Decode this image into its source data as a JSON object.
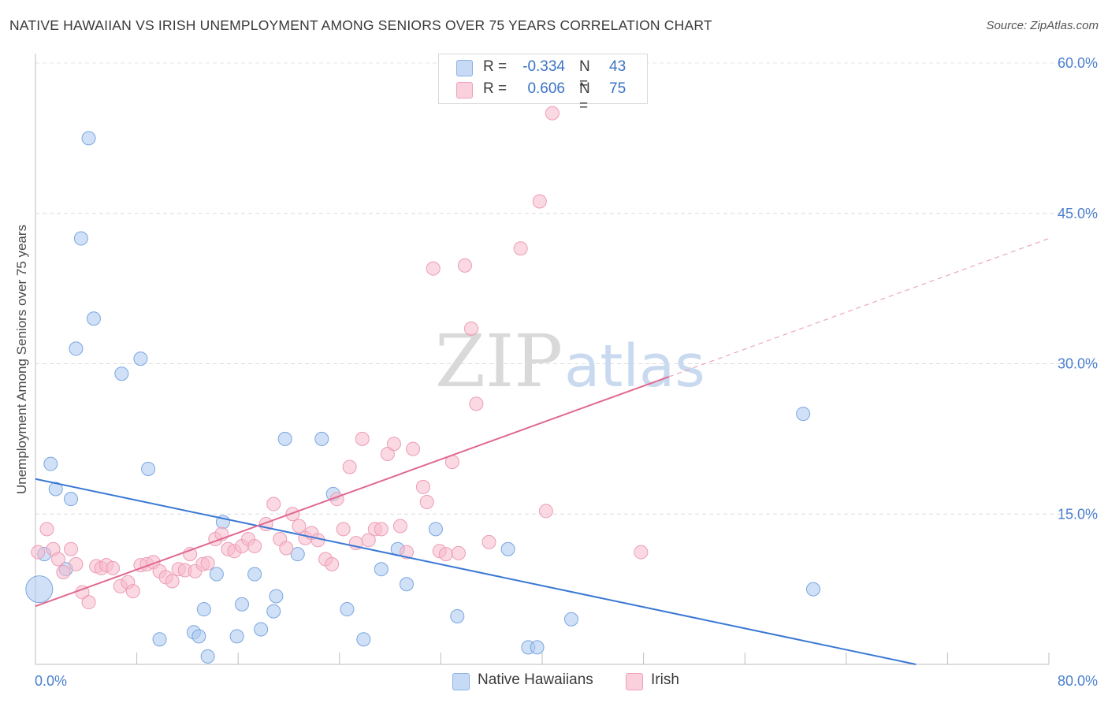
{
  "title": "NATIVE HAWAIIAN VS IRISH UNEMPLOYMENT AMONG SENIORS OVER 75 YEARS CORRELATION CHART",
  "source": "Source: ZipAtlas.com",
  "watermark": {
    "zip": "ZIP",
    "atlas": "atlas"
  },
  "legend": {
    "rows": [
      {
        "r_label": "R =",
        "r_value": "-0.334",
        "n_label": "N =",
        "n_value": "43",
        "color": "#a9c8f0"
      },
      {
        "r_label": "R =",
        "r_value": "0.606",
        "n_label": "N =",
        "n_value": "75",
        "color": "#f7b9cc"
      }
    ]
  },
  "bottom_legend": [
    "Native Hawaiians",
    "Irish"
  ],
  "chart_data": {
    "type": "scatter",
    "title": "NATIVE HAWAIIAN VS IRISH UNEMPLOYMENT AMONG SENIORS OVER 75 YEARS CORRELATION CHART",
    "xlabel": "",
    "ylabel": "Unemployment Among Seniors over 75 years",
    "xlim": [
      0,
      80
    ],
    "ylim": [
      0,
      60
    ],
    "x_tick_labels": [
      "0.0%",
      "80.0%"
    ],
    "y_ticks": [
      15,
      30,
      45,
      60
    ],
    "y_tick_labels": [
      "15.0%",
      "30.0%",
      "45.0%",
      "60.0%"
    ],
    "grid": true,
    "colors": {
      "native_hawaiians": "#a9c8f0",
      "native_hawaiians_line": "#3a78d4",
      "irish": "#f7b9cc",
      "irish_line": "#e0698f",
      "tick_text": "#4a7fcf"
    },
    "series": [
      {
        "name": "Native Hawaiians",
        "points": [
          [
            0.3,
            7.5
          ],
          [
            0.7,
            11
          ],
          [
            1.2,
            20
          ],
          [
            1.6,
            17.5
          ],
          [
            2.4,
            9.5
          ],
          [
            2.8,
            16.5
          ],
          [
            3.2,
            31.5
          ],
          [
            3.6,
            42.5
          ],
          [
            4.2,
            52.5
          ],
          [
            4.6,
            34.5
          ],
          [
            6.8,
            29
          ],
          [
            8.3,
            30.5
          ],
          [
            8.9,
            19.5
          ],
          [
            9.8,
            2.5
          ],
          [
            12.5,
            3.2
          ],
          [
            12.9,
            2.8
          ],
          [
            13.3,
            5.5
          ],
          [
            13.6,
            0.8
          ],
          [
            14.3,
            9
          ],
          [
            14.8,
            14.2
          ],
          [
            15.9,
            2.8
          ],
          [
            16.3,
            6
          ],
          [
            17.3,
            9
          ],
          [
            17.8,
            3.5
          ],
          [
            18.8,
            5.3
          ],
          [
            19.0,
            6.8
          ],
          [
            19.7,
            22.5
          ],
          [
            20.7,
            11
          ],
          [
            22.6,
            22.5
          ],
          [
            23.5,
            17
          ],
          [
            24.6,
            5.5
          ],
          [
            25.9,
            2.5
          ],
          [
            27.3,
            9.5
          ],
          [
            28.6,
            11.5
          ],
          [
            29.3,
            8
          ],
          [
            31.6,
            13.5
          ],
          [
            33.3,
            4.8
          ],
          [
            37.3,
            11.5
          ],
          [
            38.9,
            1.7
          ],
          [
            39.6,
            1.7
          ],
          [
            42.3,
            4.5
          ],
          [
            60.6,
            25
          ],
          [
            61.4,
            7.5
          ]
        ]
      },
      {
        "name": "Irish",
        "points": [
          [
            0.2,
            11.2
          ],
          [
            0.9,
            13.5
          ],
          [
            1.4,
            11.5
          ],
          [
            1.8,
            10.5
          ],
          [
            2.2,
            9.2
          ],
          [
            2.8,
            11.5
          ],
          [
            3.2,
            10
          ],
          [
            3.7,
            7.2
          ],
          [
            4.2,
            6.2
          ],
          [
            4.8,
            9.8
          ],
          [
            5.2,
            9.6
          ],
          [
            5.6,
            9.9
          ],
          [
            6.1,
            9.6
          ],
          [
            6.7,
            7.8
          ],
          [
            7.3,
            8.2
          ],
          [
            7.7,
            7.3
          ],
          [
            8.3,
            9.9
          ],
          [
            8.8,
            10
          ],
          [
            9.3,
            10.2
          ],
          [
            9.8,
            9.3
          ],
          [
            10.3,
            8.7
          ],
          [
            10.8,
            8.3
          ],
          [
            11.3,
            9.5
          ],
          [
            11.8,
            9.4
          ],
          [
            12.2,
            11
          ],
          [
            12.6,
            9.3
          ],
          [
            13.2,
            10
          ],
          [
            13.6,
            10.1
          ],
          [
            14.2,
            12.5
          ],
          [
            14.7,
            13
          ],
          [
            15.2,
            11.5
          ],
          [
            15.7,
            11.3
          ],
          [
            16.3,
            11.8
          ],
          [
            16.8,
            12.5
          ],
          [
            17.3,
            11.8
          ],
          [
            18.2,
            14
          ],
          [
            18.8,
            16
          ],
          [
            19.3,
            12.5
          ],
          [
            19.8,
            11.6
          ],
          [
            20.3,
            15
          ],
          [
            20.8,
            13.8
          ],
          [
            21.3,
            12.6
          ],
          [
            21.8,
            13.1
          ],
          [
            22.3,
            12.4
          ],
          [
            22.9,
            10.5
          ],
          [
            23.4,
            10
          ],
          [
            23.8,
            16.5
          ],
          [
            24.3,
            13.5
          ],
          [
            24.8,
            19.7
          ],
          [
            25.3,
            12.1
          ],
          [
            25.8,
            22.5
          ],
          [
            26.3,
            12.4
          ],
          [
            26.8,
            13.5
          ],
          [
            27.3,
            13.5
          ],
          [
            27.8,
            21
          ],
          [
            28.3,
            22
          ],
          [
            28.8,
            13.8
          ],
          [
            29.3,
            11.2
          ],
          [
            29.8,
            21.5
          ],
          [
            30.6,
            17.7
          ],
          [
            30.9,
            16.2
          ],
          [
            31.4,
            39.5
          ],
          [
            31.9,
            11.3
          ],
          [
            32.4,
            11
          ],
          [
            32.9,
            20.2
          ],
          [
            33.4,
            11.1
          ],
          [
            33.9,
            39.8
          ],
          [
            34.4,
            33.5
          ],
          [
            34.8,
            26
          ],
          [
            35.8,
            12.2
          ],
          [
            38.3,
            41.5
          ],
          [
            39.8,
            46.2
          ],
          [
            40.3,
            15.3
          ],
          [
            40.8,
            55
          ],
          [
            47.8,
            11.2
          ]
        ]
      }
    ],
    "trend_lines": [
      {
        "series": "Native Hawaiians",
        "from": [
          0,
          18.5
        ],
        "to": [
          69.5,
          0
        ]
      },
      {
        "series": "Irish",
        "from": [
          0,
          5.8
        ],
        "to": [
          50,
          28.7
        ],
        "dashed_to": [
          80,
          42.5
        ]
      }
    ]
  }
}
